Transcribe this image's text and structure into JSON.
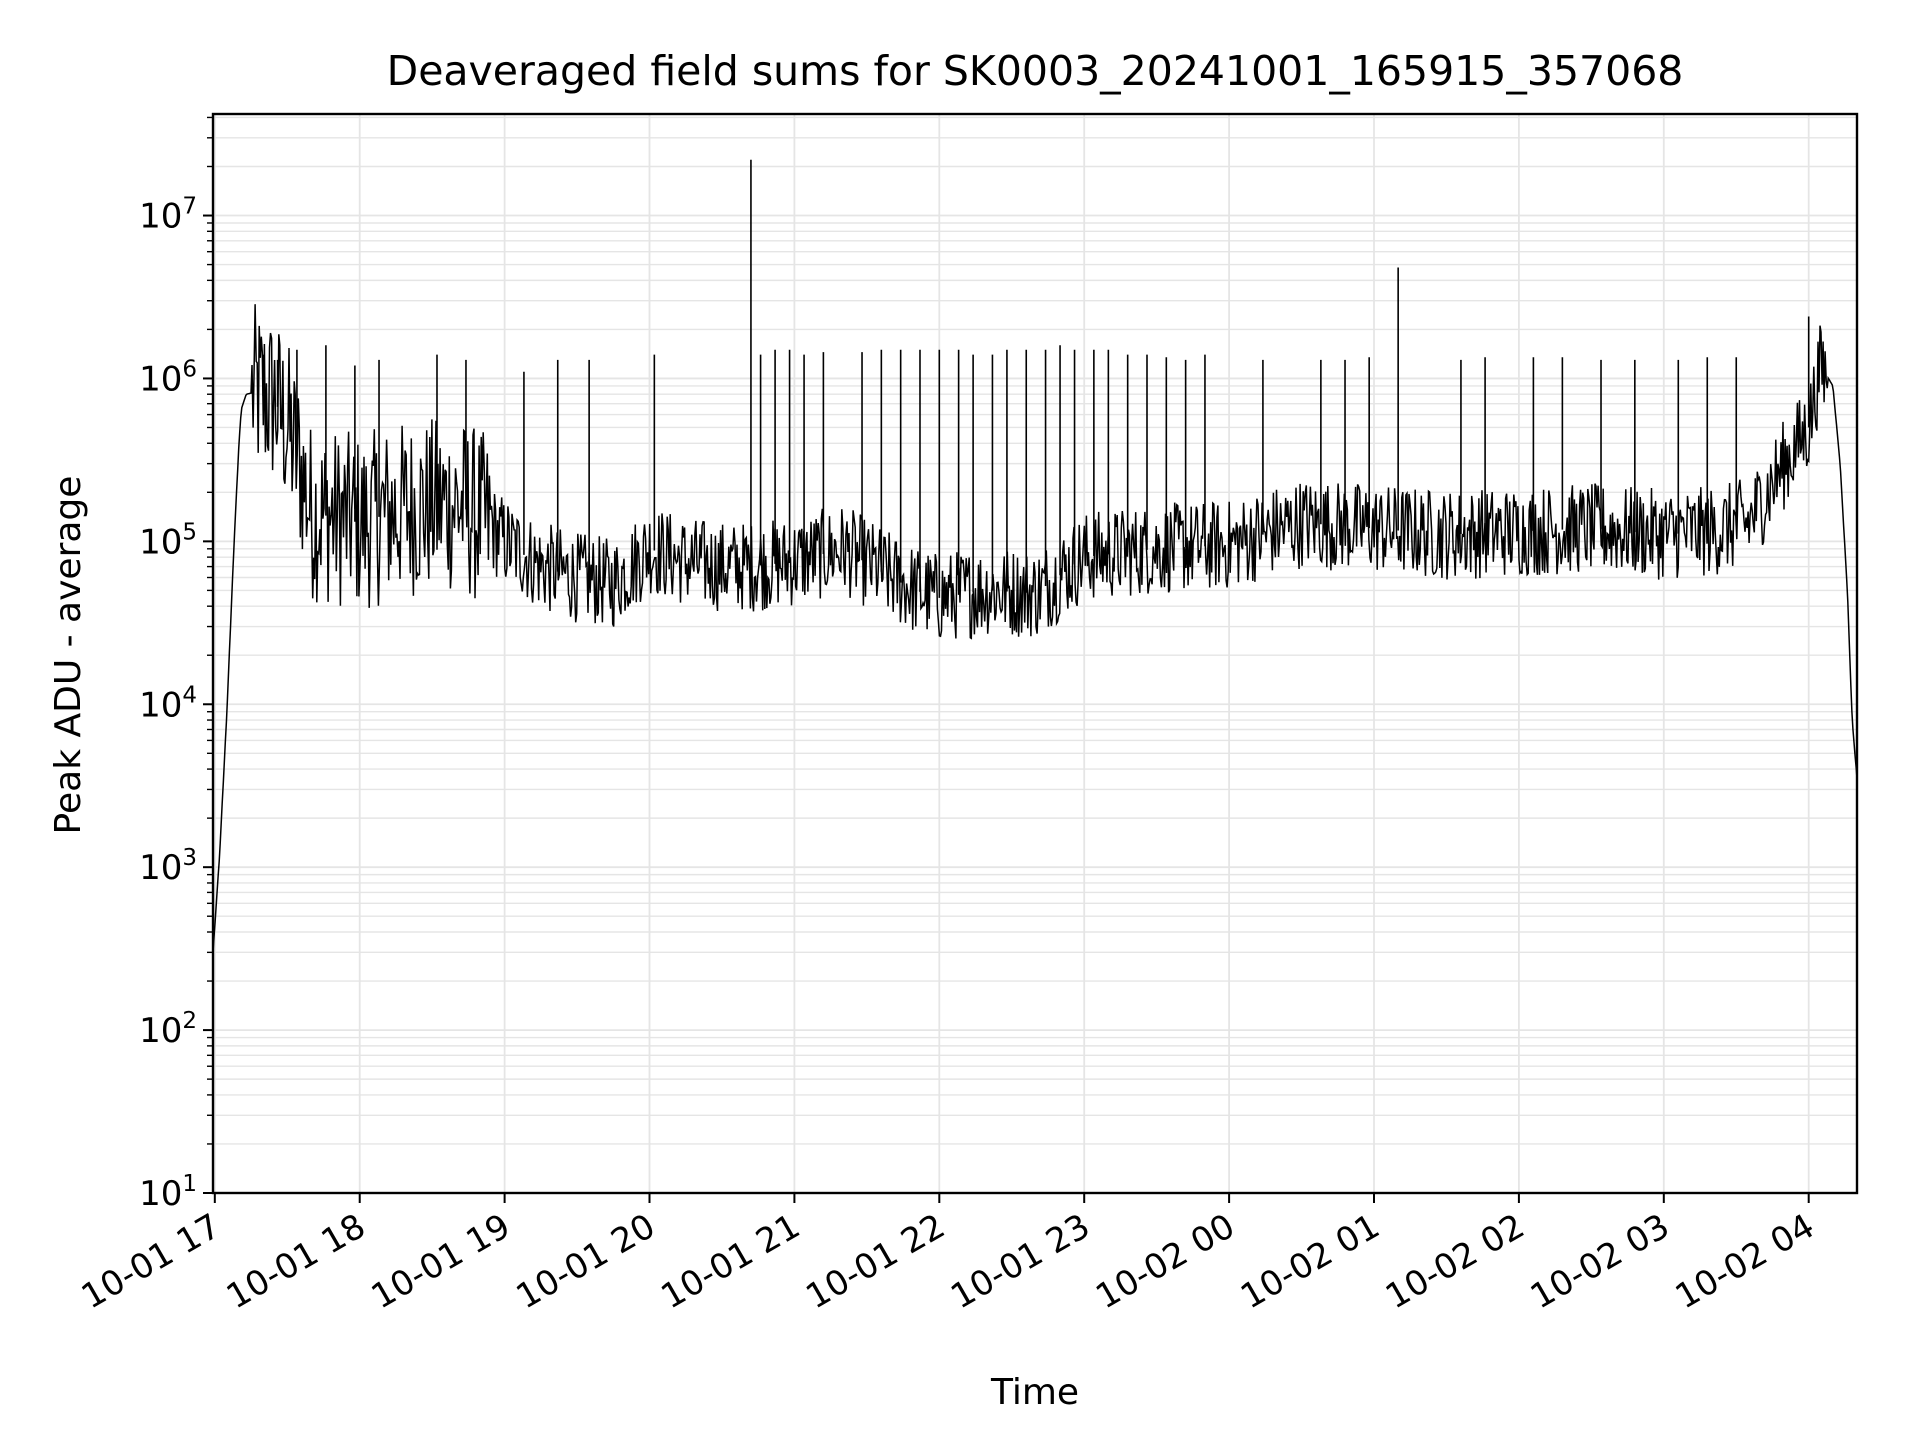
{
  "chart_data": {
    "type": "line",
    "title": "Deaveraged field sums for SK0003_20241001_165915_357068",
    "xlabel": "Time",
    "ylabel": "Peak ADU - average",
    "y_scale": "log",
    "ylim": [
      10,
      42000000
    ],
    "xlim": [
      "2024-10-01 16:59:15",
      "2024-10-02 04:20:00"
    ],
    "grid": true,
    "grid_color": "#e5e5e5",
    "line_color": "#000000",
    "x_ticks": [
      {
        "label": "10-01 17",
        "value": "2024-10-01 17:00"
      },
      {
        "label": "10-01 18",
        "value": "2024-10-01 18:00"
      },
      {
        "label": "10-01 19",
        "value": "2024-10-01 19:00"
      },
      {
        "label": "10-01 20",
        "value": "2024-10-01 20:00"
      },
      {
        "label": "10-01 21",
        "value": "2024-10-01 21:00"
      },
      {
        "label": "10-01 22",
        "value": "2024-10-01 22:00"
      },
      {
        "label": "10-01 23",
        "value": "2024-10-01 23:00"
      },
      {
        "label": "10-02 00",
        "value": "2024-10-02 00:00"
      },
      {
        "label": "10-02 01",
        "value": "2024-10-02 01:00"
      },
      {
        "label": "10-02 02",
        "value": "2024-10-02 02:00"
      },
      {
        "label": "10-02 03",
        "value": "2024-10-02 03:00"
      },
      {
        "label": "10-02 04",
        "value": "2024-10-02 04:00"
      }
    ],
    "y_ticks": [
      {
        "base": "10",
        "exp": "1",
        "value": 10
      },
      {
        "base": "10",
        "exp": "2",
        "value": 100
      },
      {
        "base": "10",
        "exp": "3",
        "value": 1000
      },
      {
        "base": "10",
        "exp": "4",
        "value": 10000
      },
      {
        "base": "10",
        "exp": "5",
        "value": 100000
      },
      {
        "base": "10",
        "exp": "6",
        "value": 1000000
      },
      {
        "base": "10",
        "exp": "7",
        "value": 10000000
      }
    ],
    "series": [
      {
        "x": [
          "2024-10-01 16:59:15",
          "2024-10-01 17:02",
          "2024-10-01 17:05",
          "2024-10-01 17:08",
          "2024-10-01 17:10",
          "2024-10-01 17:11",
          "2024-10-01 17:13",
          "2024-10-01 17:16",
          "2024-10-01 17:20",
          "2024-10-01 17:25",
          "2024-10-01 17:30",
          "2024-10-01 17:35",
          "2024-10-01 17:40",
          "2024-10-01 17:50",
          "2024-10-01 18:00",
          "2024-10-01 18:20",
          "2024-10-01 18:40",
          "2024-10-01 18:50",
          "2024-10-01 19:00",
          "2024-10-01 19:15",
          "2024-10-01 19:30",
          "2024-10-01 19:45",
          "2024-10-01 20:00",
          "2024-10-01 20:15",
          "2024-10-01 20:30",
          "2024-10-01 20:42",
          "2024-10-01 21:00",
          "2024-10-01 21:20",
          "2024-10-01 21:40",
          "2024-10-01 21:50",
          "2024-10-01 22:00",
          "2024-10-01 22:20",
          "2024-10-01 22:40",
          "2024-10-01 23:00",
          "2024-10-01 23:30",
          "2024-10-02 00:00",
          "2024-10-02 00:30",
          "2024-10-02 01:00",
          "2024-10-02 01:30",
          "2024-10-02 02:00",
          "2024-10-02 02:30",
          "2024-10-02 03:00",
          "2024-10-02 03:20",
          "2024-10-02 03:35",
          "2024-10-02 03:50",
          "2024-10-02 04:00",
          "2024-10-02 04:05",
          "2024-10-02 04:10",
          "2024-10-02 04:13",
          "2024-10-02 04:16",
          "2024-10-02 04:18",
          "2024-10-02 04:20"
        ],
        "y": [
          300,
          1200,
          9000,
          100000,
          400000,
          650000,
          800000,
          820000,
          780000,
          720000,
          500000,
          300000,
          150000,
          140000,
          130000,
          160000,
          170000,
          140000,
          100000,
          70000,
          60000,
          55000,
          90000,
          75000,
          70000,
          70000,
          75000,
          90000,
          60000,
          50000,
          45000,
          50000,
          48000,
          80000,
          90000,
          95000,
          130000,
          120000,
          110000,
          115000,
          120000,
          110000,
          115000,
          130000,
          300000,
          500000,
          1200000,
          900000,
          300000,
          50000,
          8000,
          3500
        ],
        "spike_x": [
          "2024-10-01 17:20",
          "2024-10-01 17:26",
          "2024-10-01 17:34",
          "2024-10-01 17:46",
          "2024-10-01 17:58",
          "2024-10-01 18:08",
          "2024-10-01 18:32",
          "2024-10-01 18:44",
          "2024-10-01 19:08",
          "2024-10-01 19:22",
          "2024-10-01 19:35",
          "2024-10-01 20:02",
          "2024-10-01 20:42",
          "2024-10-01 20:46",
          "2024-10-01 20:52",
          "2024-10-01 20:58",
          "2024-10-01 21:04",
          "2024-10-01 21:12",
          "2024-10-01 21:28",
          "2024-10-01 21:36",
          "2024-10-01 21:44",
          "2024-10-01 21:52",
          "2024-10-01 22:00",
          "2024-10-01 22:08",
          "2024-10-01 22:14",
          "2024-10-01 22:22",
          "2024-10-01 22:28",
          "2024-10-01 22:36",
          "2024-10-01 22:44",
          "2024-10-01 22:50",
          "2024-10-01 22:56",
          "2024-10-01 23:04",
          "2024-10-01 23:10",
          "2024-10-01 23:18",
          "2024-10-01 23:26",
          "2024-10-01 23:34",
          "2024-10-01 23:42",
          "2024-10-01 23:50",
          "2024-10-02 00:14",
          "2024-10-02 00:38",
          "2024-10-02 00:48",
          "2024-10-02 00:58",
          "2024-10-02 01:10",
          "2024-10-02 01:36",
          "2024-10-02 01:46",
          "2024-10-02 02:06",
          "2024-10-02 02:18",
          "2024-10-02 02:34",
          "2024-10-02 02:48",
          "2024-10-02 03:06",
          "2024-10-02 03:18",
          "2024-10-02 03:30",
          "2024-10-02 04:00",
          "2024-10-02 04:06"
        ],
        "spike_y": [
          1400000,
          1300000,
          1500000,
          1600000,
          1200000,
          1300000,
          1400000,
          1300000,
          1100000,
          1300000,
          1300000,
          1400000,
          22000000,
          1400000,
          1500000,
          1500000,
          1400000,
          1450000,
          1450000,
          1500000,
          1500000,
          1500000,
          1500000,
          1500000,
          1400000,
          1400000,
          1500000,
          1500000,
          1500000,
          1600000,
          1500000,
          1500000,
          1500000,
          1400000,
          1400000,
          1350000,
          1300000,
          1400000,
          1300000,
          1300000,
          1300000,
          1350000,
          4800000,
          1300000,
          1350000,
          1350000,
          1350000,
          1300000,
          1300000,
          1300000,
          1350000,
          1350000,
          2400000,
          1500000
        ]
      }
    ]
  }
}
